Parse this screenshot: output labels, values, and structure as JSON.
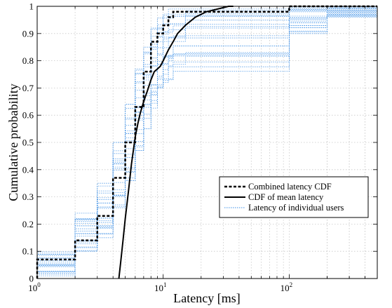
{
  "chart_data": {
    "type": "line",
    "xlabel": "Latency [ms]",
    "ylabel": "Cumulative probability",
    "xscale": "log",
    "xlim": [
      1,
      500
    ],
    "ylim": [
      0,
      1
    ],
    "grid": true,
    "legend_position": "bottom-right",
    "x_tick_labels": [
      {
        "value": 1,
        "base": "10",
        "exp": "0"
      },
      {
        "value": 10,
        "base": "10",
        "exp": "1"
      },
      {
        "value": 100,
        "base": "10",
        "exp": "2"
      }
    ],
    "y_ticks": [
      0,
      0.1,
      0.2,
      0.3,
      0.4,
      0.5,
      0.6,
      0.7,
      0.8,
      0.9,
      1
    ],
    "y_tick_labels": [
      "0",
      "0.1",
      "0.2",
      "0.3",
      "0.4",
      "0.5",
      "0.6",
      "0.7",
      "0.8",
      "0.9",
      "1"
    ],
    "colors": {
      "combined": "#000000",
      "mean": "#000000",
      "individual": "#3a8ee6"
    },
    "series": [
      {
        "name": "Combined latency CDF",
        "style": "dashed-step",
        "x": [
          1,
          1,
          2,
          2,
          3,
          3,
          4,
          4,
          5,
          5,
          6,
          6,
          7,
          7,
          8,
          8,
          9,
          9,
          10,
          10,
          11,
          11,
          12,
          12,
          15,
          15,
          100,
          100,
          500
        ],
        "y": [
          0,
          0.07,
          0.07,
          0.14,
          0.14,
          0.23,
          0.23,
          0.37,
          0.37,
          0.5,
          0.5,
          0.63,
          0.63,
          0.76,
          0.76,
          0.87,
          0.87,
          0.9,
          0.9,
          0.93,
          0.93,
          0.96,
          0.96,
          0.98,
          0.98,
          0.98,
          0.98,
          1.0,
          1.0
        ]
      },
      {
        "name": "CDF of mean latency",
        "style": "solid",
        "x": [
          4.45,
          4.6,
          4.8,
          5.0,
          5.3,
          5.6,
          6.0,
          6.3,
          6.6,
          7.0,
          7.5,
          8.0,
          8.5,
          9.0,
          9.5,
          10.0,
          11.0,
          12.0,
          13.0,
          15.0,
          18.0,
          22.0,
          27.0,
          33.0,
          36.0
        ],
        "y": [
          0.0,
          0.06,
          0.14,
          0.22,
          0.32,
          0.42,
          0.52,
          0.57,
          0.61,
          0.65,
          0.69,
          0.73,
          0.76,
          0.77,
          0.78,
          0.8,
          0.84,
          0.87,
          0.9,
          0.93,
          0.96,
          0.98,
          0.99,
          1.0,
          1.0
        ]
      },
      {
        "name": "Latency of individual users",
        "style": "dotted-step-band",
        "x": [
          1,
          2,
          3,
          4,
          5,
          6,
          7,
          8,
          9,
          10,
          11,
          12,
          15,
          100,
          200,
          500
        ],
        "y_low": [
          0.0,
          0.1,
          0.15,
          0.26,
          0.36,
          0.47,
          0.55,
          0.62,
          0.7,
          0.72,
          0.73,
          0.74,
          0.75,
          0.9,
          0.96,
          1.0
        ],
        "y_high": [
          0.1,
          0.24,
          0.35,
          0.5,
          0.64,
          0.77,
          0.85,
          0.92,
          0.96,
          0.98,
          0.99,
          0.99,
          0.99,
          1.0,
          1.0,
          1.0
        ],
        "count": 22
      }
    ]
  }
}
